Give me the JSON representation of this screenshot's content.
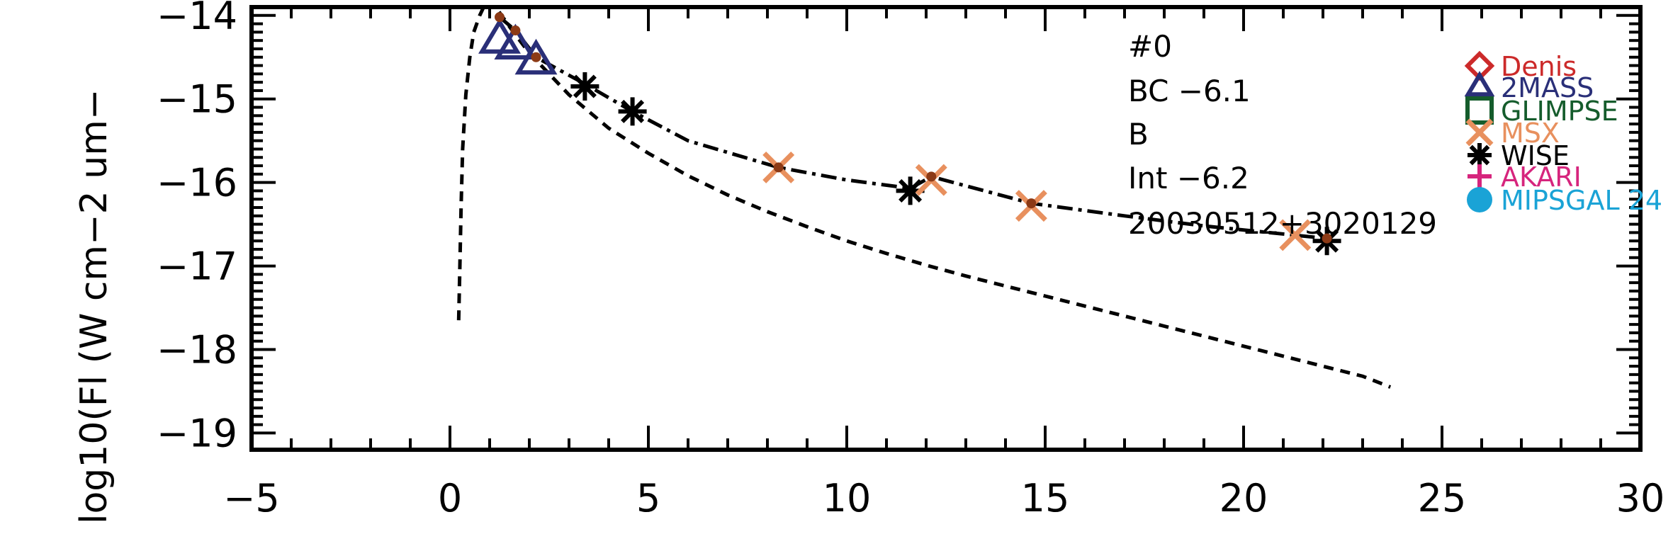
{
  "chart_data": {
    "type": "scatter",
    "title": "",
    "xlabel": "",
    "ylabel": "log10(Fl (W cm−2 um−",
    "xlim": [
      -5,
      30
    ],
    "ylim": [
      -19.2,
      -13.9
    ],
    "x_ticks": [
      -5,
      0,
      5,
      10,
      15,
      20,
      25,
      30
    ],
    "x_tick_labels": [
      "−5",
      "0",
      "5",
      "10",
      "15",
      "20",
      "25",
      "30"
    ],
    "y_ticks": [
      -14,
      -15,
      -16,
      -17,
      -18,
      -19
    ],
    "y_tick_labels": [
      "−14",
      "−15",
      "−16",
      "−17",
      "−18",
      "−19"
    ],
    "grid": false,
    "legend_position": "right",
    "annotations": [
      "#0",
      "BC  −6.1",
      "B",
      "Int  −6.2",
      "20030512+3020129"
    ],
    "legend": [
      {
        "label": "Denis",
        "marker": "diamond",
        "color": "#cc2a2a"
      },
      {
        "label": "2MASS",
        "marker": "triangle",
        "color": "#2a2f78"
      },
      {
        "label": "GLIMPSE",
        "marker": "square",
        "color": "#155c2c"
      },
      {
        "label": "MSX",
        "marker": "x",
        "color": "#e8905e"
      },
      {
        "label": "WISE",
        "marker": "asterisk",
        "color": "#000000"
      },
      {
        "label": "AKARI",
        "marker": "plus",
        "color": "#d6257d"
      },
      {
        "label": "MIPSGAL 24",
        "marker": "circle",
        "color": "#1aa3d6"
      }
    ],
    "series": [
      {
        "name": "2MASS",
        "marker": "triangle",
        "color": "#2a2f78",
        "points": [
          [
            1.25,
            -14.3
          ],
          [
            1.65,
            -14.37
          ],
          [
            2.17,
            -14.55
          ]
        ]
      },
      {
        "name": "MSX",
        "marker": "x",
        "color": "#e8905e",
        "points": [
          [
            8.28,
            -15.82
          ],
          [
            12.13,
            -15.97
          ],
          [
            14.65,
            -16.28
          ],
          [
            21.3,
            -16.63
          ]
        ]
      },
      {
        "name": "WISE",
        "marker": "asterisk",
        "color": "#000000",
        "points": [
          [
            3.4,
            -14.85
          ],
          [
            4.6,
            -15.15
          ],
          [
            11.6,
            -16.1
          ],
          [
            22.1,
            -16.7
          ]
        ]
      },
      {
        "name": "model points",
        "marker": "dot",
        "color": "#8c3a16",
        "points": [
          [
            1.25,
            -14.02
          ],
          [
            1.65,
            -14.18
          ],
          [
            2.17,
            -14.5
          ],
          [
            8.28,
            -15.82
          ],
          [
            12.13,
            -15.93
          ],
          [
            14.65,
            -16.25
          ],
          [
            22.1,
            -16.67
          ]
        ]
      }
    ],
    "lines": [
      {
        "style": "dash-dot",
        "color": "#000000",
        "points": [
          [
            1.25,
            -14.02
          ],
          [
            1.65,
            -14.18
          ],
          [
            2.17,
            -14.5
          ],
          [
            3.4,
            -14.82
          ],
          [
            4.6,
            -15.15
          ],
          [
            6,
            -15.5
          ],
          [
            8.28,
            -15.82
          ],
          [
            10,
            -15.97
          ],
          [
            11.6,
            -16.07
          ],
          [
            12.13,
            -15.93
          ],
          [
            14.65,
            -16.25
          ],
          [
            17,
            -16.4
          ],
          [
            19,
            -16.52
          ],
          [
            22.1,
            -16.67
          ]
        ]
      },
      {
        "style": "dashed",
        "color": "#000000",
        "points": [
          [
            0.22,
            -17.65
          ],
          [
            0.25,
            -17.0
          ],
          [
            0.28,
            -16.3
          ],
          [
            0.32,
            -15.6
          ],
          [
            0.4,
            -14.95
          ],
          [
            0.5,
            -14.5
          ],
          [
            0.6,
            -14.2
          ],
          [
            0.75,
            -14.0
          ],
          [
            0.9,
            -13.85
          ],
          [
            1.0,
            -13.82
          ],
          [
            1.1,
            -13.86
          ],
          [
            1.3,
            -14.0
          ],
          [
            1.6,
            -14.2
          ],
          [
            2.0,
            -14.45
          ],
          [
            3,
            -14.95
          ],
          [
            4,
            -15.35
          ],
          [
            5,
            -15.65
          ],
          [
            6,
            -15.92
          ],
          [
            7,
            -16.15
          ],
          [
            8,
            -16.35
          ],
          [
            9,
            -16.53
          ],
          [
            10,
            -16.7
          ],
          [
            11,
            -16.85
          ],
          [
            12,
            -16.99
          ],
          [
            13,
            -17.12
          ],
          [
            14,
            -17.24
          ],
          [
            15,
            -17.36
          ],
          [
            16,
            -17.48
          ],
          [
            17,
            -17.6
          ],
          [
            18,
            -17.72
          ],
          [
            19,
            -17.84
          ],
          [
            20,
            -17.96
          ],
          [
            21,
            -18.08
          ],
          [
            22,
            -18.2
          ],
          [
            23,
            -18.32
          ],
          [
            23.7,
            -18.45
          ]
        ]
      }
    ]
  }
}
